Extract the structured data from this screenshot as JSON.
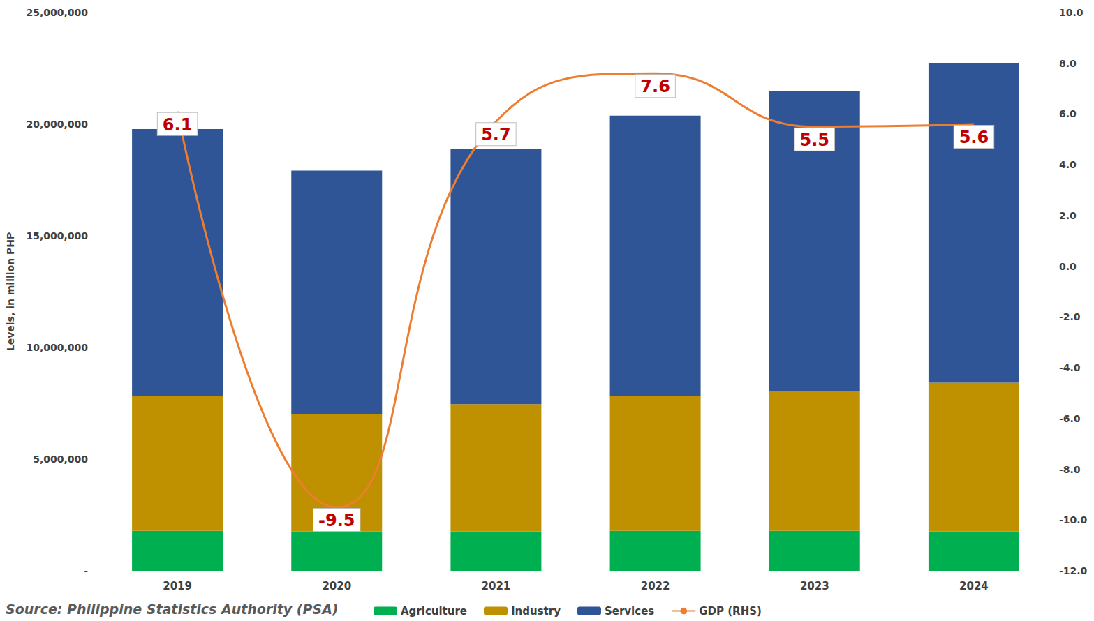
{
  "chart_data": {
    "type": "bar",
    "stacked": true,
    "grid": false,
    "legend": "bottom",
    "source": "Source: Philippine Statistics Authority (PSA)",
    "ylabel": "Levels, in million PHP",
    "categories": [
      "2019",
      "2020",
      "2021",
      "2022",
      "2023",
      "2024"
    ],
    "ylim": [
      0,
      25000000
    ],
    "yticks": [
      {
        "value": 0,
        "label": "-"
      },
      {
        "value": 5000000,
        "label": "5,000,000"
      },
      {
        "value": 10000000,
        "label": "10,000,000"
      },
      {
        "value": 15000000,
        "label": "15,000,000"
      },
      {
        "value": 20000000,
        "label": "20,000,000"
      },
      {
        "value": 25000000,
        "label": "25,000,000"
      }
    ],
    "y2lim": [
      -12,
      10
    ],
    "y2ticks": [
      {
        "value": -12,
        "label": "-12.0"
      },
      {
        "value": -10,
        "label": "-10.0"
      },
      {
        "value": -8,
        "label": "-8.0"
      },
      {
        "value": -6,
        "label": "-6.0"
      },
      {
        "value": -4,
        "label": "-4.0"
      },
      {
        "value": -2,
        "label": "-2.0"
      },
      {
        "value": 0,
        "label": "0.0"
      },
      {
        "value": 2,
        "label": "2.0"
      },
      {
        "value": 4,
        "label": "4.0"
      },
      {
        "value": 6,
        "label": "6.0"
      },
      {
        "value": 8,
        "label": "8.0"
      },
      {
        "value": 10,
        "label": "10.0"
      }
    ],
    "series": [
      {
        "name": "Agriculture",
        "type": "bar",
        "color": "#00b050",
        "values": [
          1790000,
          1760000,
          1760000,
          1790000,
          1790000,
          1760000
        ]
      },
      {
        "name": "Industry",
        "type": "bar",
        "color": "#bf9000",
        "values": [
          6020000,
          5250000,
          5700000,
          6050000,
          6270000,
          6660000
        ]
      },
      {
        "name": "Services",
        "type": "bar",
        "color": "#2f5597",
        "values": [
          11970000,
          10910000,
          11450000,
          12540000,
          13440000,
          14330000
        ]
      },
      {
        "name": "GDP (RHS)",
        "type": "line",
        "axis": "y2",
        "color": "#ed7d31",
        "line_style": "solid",
        "data_labels": true,
        "values": [
          6.1,
          -9.5,
          5.7,
          7.6,
          5.5,
          5.6
        ]
      }
    ]
  }
}
